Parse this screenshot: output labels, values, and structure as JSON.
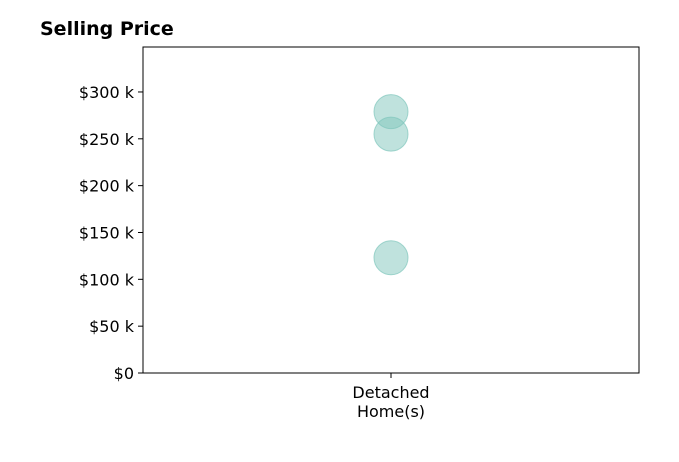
{
  "chart_data": {
    "type": "scatter",
    "title": "Selling Price",
    "xlabel": "",
    "ylabel": "",
    "categories": [
      "Detached\nHome(s)"
    ],
    "y_ticks": [
      {
        "value": 0,
        "label": "$0"
      },
      {
        "value": 50000,
        "label": "$50 k"
      },
      {
        "value": 100000,
        "label": "$100 k"
      },
      {
        "value": 150000,
        "label": "$150 k"
      },
      {
        "value": 200000,
        "label": "$200 k"
      },
      {
        "value": 250000,
        "label": "$250 k"
      },
      {
        "value": 300000,
        "label": "$300 k"
      }
    ],
    "ylim": [
      0,
      348000
    ],
    "grid": false,
    "series": [
      {
        "color": "#7fc6bc",
        "points": [
          {
            "x": "Detached\nHome(s)",
            "y": 279000
          },
          {
            "x": "Detached\nHome(s)",
            "y": 255000
          },
          {
            "x": "Detached\nHome(s)",
            "y": 123000
          }
        ]
      }
    ]
  }
}
